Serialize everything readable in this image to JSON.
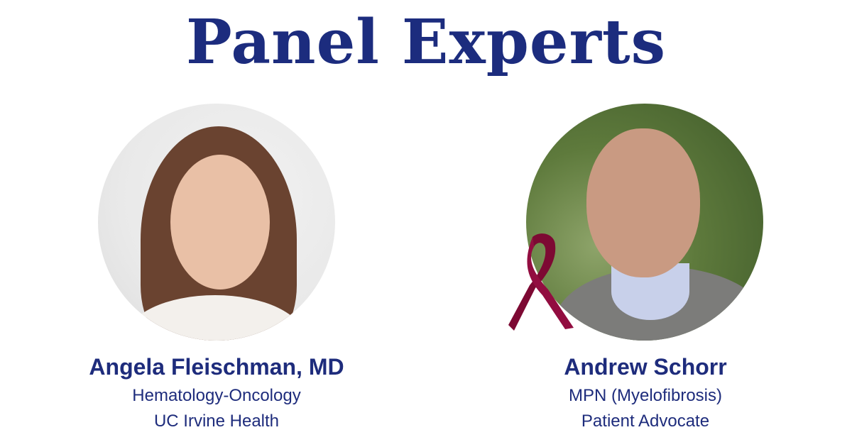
{
  "title": "Panel Experts",
  "experts": [
    {
      "name": "Angela Fleischman, MD",
      "line1": "Hematology-Oncology",
      "line2": "UC Irvine Health"
    },
    {
      "name": "Andrew Schorr",
      "line1": "MPN (Myelofibrosis)",
      "line2": "Patient Advocate"
    }
  ],
  "colors": {
    "text": "#1e2c7c",
    "ribbon": "#8a0a3a"
  },
  "icons": {
    "ribbon": "awareness-ribbon-icon"
  }
}
